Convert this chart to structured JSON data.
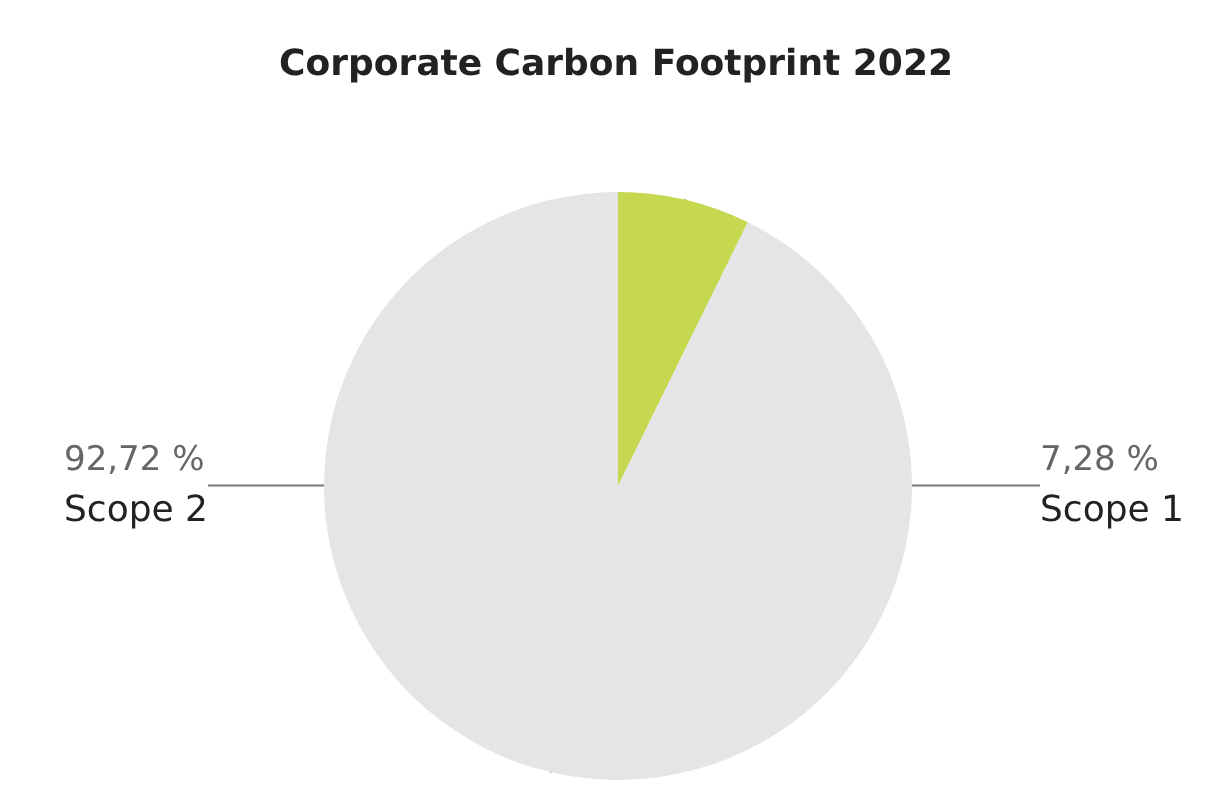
{
  "chart_data": {
    "type": "pie",
    "title": "Corporate Carbon Footprint 2022",
    "categories": [
      "Scope 1",
      "Scope 2"
    ],
    "values": [
      7.28,
      92.72
    ],
    "colors": [
      "#c5d84f",
      "#e4e5e6"
    ],
    "value_labels": [
      "7,28 %",
      "92,72 %"
    ]
  }
}
